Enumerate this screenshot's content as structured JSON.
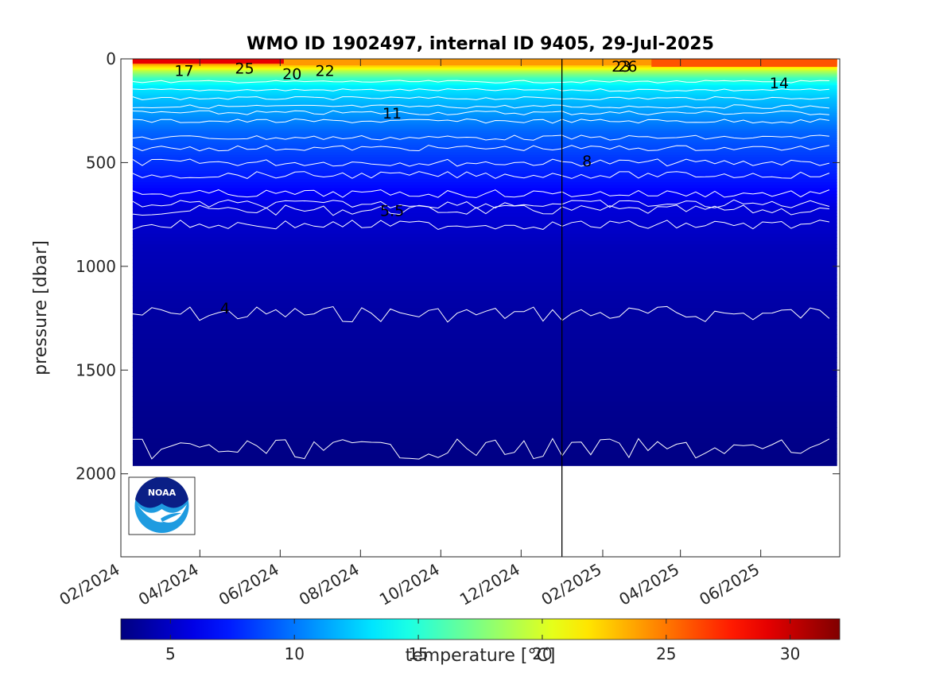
{
  "chart_data": {
    "type": "heatmap",
    "title": "WMO ID 1902497, internal ID 9405, 29-Jul-2025",
    "ylabel": "pressure [dbar]",
    "xlabel": "",
    "y_reversed": true,
    "ylim": [
      0,
      2400
    ],
    "yticks": [
      0,
      500,
      1000,
      1500,
      2000
    ],
    "xlim": [
      "2024-02-01",
      "2025-07-31"
    ],
    "xtick_labels": [
      "02/2024",
      "04/2024",
      "06/2024",
      "08/2024",
      "10/2024",
      "12/2024",
      "02/2025",
      "04/2025",
      "06/2025"
    ],
    "xtick_dates": [
      "2024-02-01",
      "2024-04-01",
      "2024-06-01",
      "2024-08-01",
      "2024-10-01",
      "2024-12-01",
      "2025-02-01",
      "2025-04-01",
      "2025-06-01"
    ],
    "data_start": "2024-02-10",
    "data_end": "2025-07-29",
    "vertical_marker_date": "2025-01-01",
    "colorbar": {
      "label": "temperature [°C]",
      "range": [
        3,
        32
      ],
      "ticks": [
        5,
        10,
        15,
        20,
        25,
        30
      ],
      "colormap": "jet"
    },
    "profile_bottom_pressure": 1960,
    "contours": [
      {
        "label": "4",
        "temperature": 4,
        "mean_pressure": 1230
      },
      {
        "label": "5.5",
        "temperature": 5.5,
        "mean_pressure": 730
      },
      {
        "label": "8",
        "temperature": 8,
        "mean_pressure": 500
      },
      {
        "label": "11",
        "temperature": 11,
        "mean_pressure": 260
      },
      {
        "label": "14",
        "temperature": 14,
        "mean_pressure": 110
      },
      {
        "label": "17",
        "temperature": 17,
        "mean_pressure": 55
      },
      {
        "label": "20",
        "temperature": 20,
        "mean_pressure": 60
      },
      {
        "label": "22",
        "temperature": 22,
        "mean_pressure": 50
      },
      {
        "label": "23",
        "temperature": 23,
        "mean_pressure": 35
      },
      {
        "label": "25",
        "temperature": 25,
        "mean_pressure": 40
      },
      {
        "label": "26",
        "temperature": 26,
        "mean_pressure": 35
      }
    ],
    "contour_label_positions": [
      {
        "text": "17",
        "date": "2024-03-20",
        "pressure": 55
      },
      {
        "text": "25",
        "date": "2024-05-05",
        "pressure": 45
      },
      {
        "text": "20",
        "date": "2024-06-10",
        "pressure": 70
      },
      {
        "text": "22",
        "date": "2024-07-05",
        "pressure": 55
      },
      {
        "text": "11",
        "date": "2024-08-25",
        "pressure": 260
      },
      {
        "text": "5.5",
        "date": "2024-08-25",
        "pressure": 730
      },
      {
        "text": "4",
        "date": "2024-04-20",
        "pressure": 1200
      },
      {
        "text": "8",
        "date": "2025-01-20",
        "pressure": 490
      },
      {
        "text": "23",
        "date": "2025-02-15",
        "pressure": 35
      },
      {
        "text": "26",
        "date": "2025-02-20",
        "pressure": 35
      },
      {
        "text": "14",
        "date": "2025-06-15",
        "pressure": 115
      }
    ],
    "logo": "noaa-logo"
  }
}
